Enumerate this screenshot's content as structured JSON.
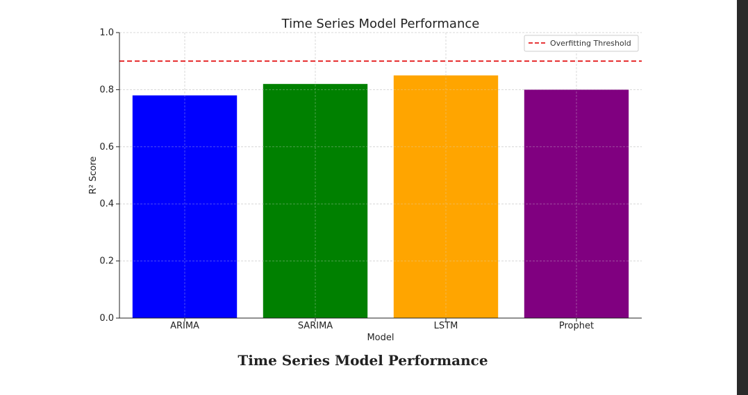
{
  "chart_data": {
    "type": "bar",
    "title": "Time Series Model Performance",
    "xlabel": "Model",
    "ylabel": "R² Score",
    "categories": [
      "ARIMA",
      "SARIMA",
      "LSTM",
      "Prophet"
    ],
    "values": [
      0.78,
      0.82,
      0.85,
      0.8
    ],
    "colors": [
      "#0000ff",
      "#008000",
      "#ffa500",
      "#800080"
    ],
    "ylim": [
      0,
      1.0
    ],
    "yticks": [
      "0.0",
      "0.2",
      "0.4",
      "0.6",
      "0.8",
      "1.0"
    ],
    "grid": true,
    "threshold": {
      "label": "Overfitting Threshold",
      "value": 0.9,
      "color": "#e41a1c"
    },
    "legend_position": "top-right"
  },
  "caption": "Time Series Model Performance"
}
